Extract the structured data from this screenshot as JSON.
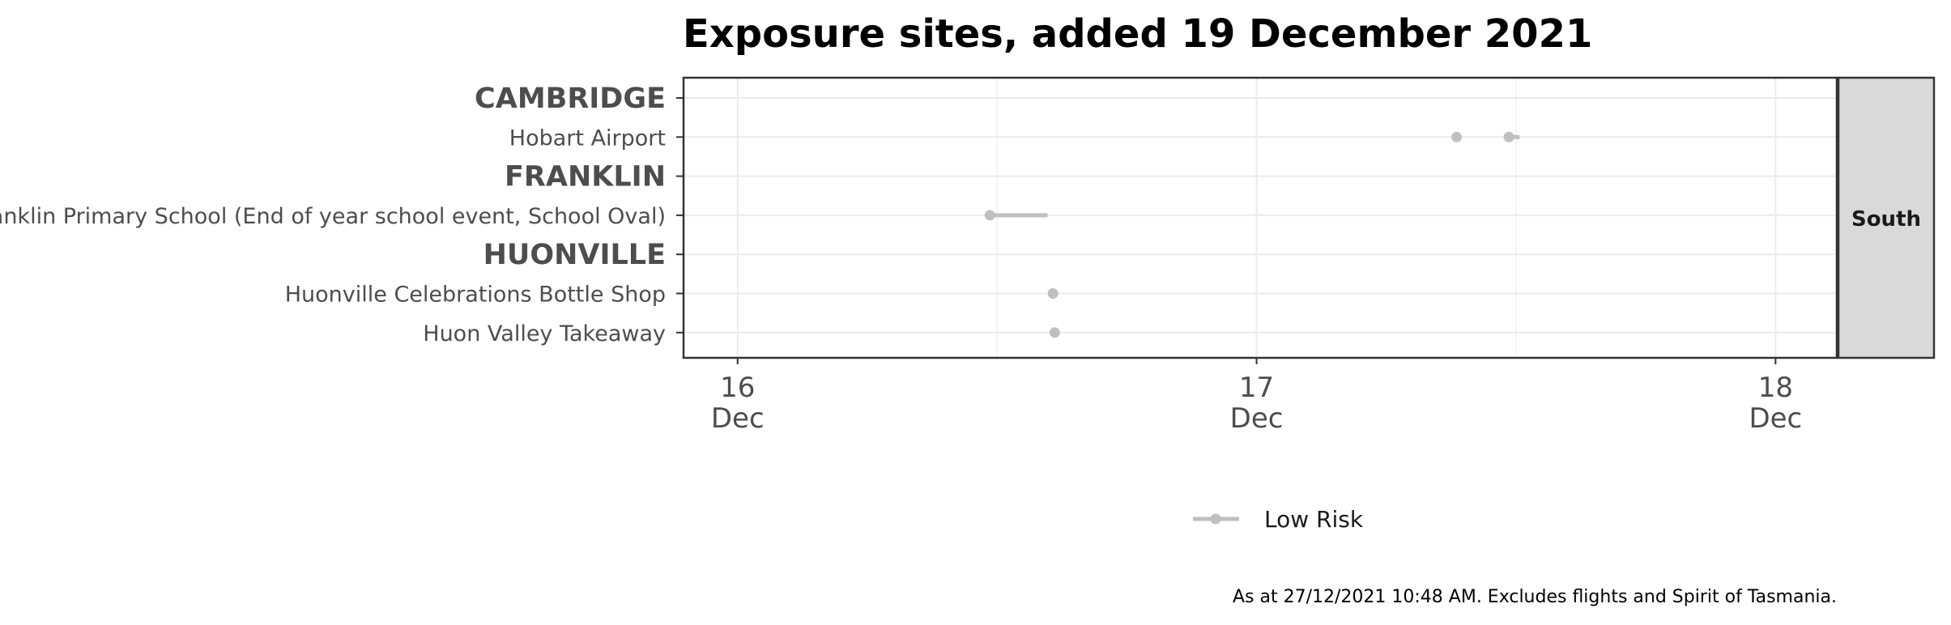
{
  "chart_data": {
    "type": "scatter",
    "title": "Exposure sites, added 19 December 2021",
    "rows": [
      {
        "label": "CAMBRIDGE",
        "kind": "group"
      },
      {
        "label": "Hobart Airport",
        "kind": "site"
      },
      {
        "label": "FRANKLIN",
        "kind": "group"
      },
      {
        "label": "Franklin Primary School (End of year school event, School Oval)",
        "kind": "site"
      },
      {
        "label": "HUONVILLE",
        "kind": "group"
      },
      {
        "label": "Huonville Celebrations Bottle Shop",
        "kind": "site"
      },
      {
        "label": "Huon Valley Takeaway",
        "kind": "site"
      }
    ],
    "intervals": [
      {
        "site": "Hobart Airport",
        "start": "2021-12-17T09:15",
        "end": "2021-12-17T09:25",
        "risk": "Low Risk"
      },
      {
        "site": "Hobart Airport",
        "start": "2021-12-17T11:40",
        "end": "2021-12-17T12:10",
        "risk": "Low Risk"
      },
      {
        "site": "Franklin Primary School (End of year school event, School Oval)",
        "start": "2021-12-16T11:40",
        "end": "2021-12-16T14:20",
        "risk": "Low Risk"
      },
      {
        "site": "Huonville Celebrations Bottle Shop",
        "start": "2021-12-16T14:35",
        "end": "2021-12-16T14:45",
        "risk": "Low Risk"
      },
      {
        "site": "Huon Valley Takeaway",
        "start": "2021-12-16T14:40",
        "end": "2021-12-16T14:50",
        "risk": "Low Risk"
      }
    ],
    "xlim": [
      "2021-12-15T21:30",
      "2021-12-18T02:50"
    ],
    "xticks": [
      {
        "value": "2021-12-16T00:00",
        "day": "16",
        "month": "Dec"
      },
      {
        "value": "2021-12-17T00:00",
        "day": "17",
        "month": "Dec"
      },
      {
        "value": "2021-12-18T00:00",
        "day": "18",
        "month": "Dec"
      }
    ],
    "facet": "South",
    "legend": [
      {
        "name": "Low Risk",
        "color": "#bfbfbf"
      }
    ],
    "legend_position": "bottom",
    "grid": true,
    "caption": "As at 27/12/2021 10:48 AM. Excludes flights and Spirit of Tasmania."
  }
}
